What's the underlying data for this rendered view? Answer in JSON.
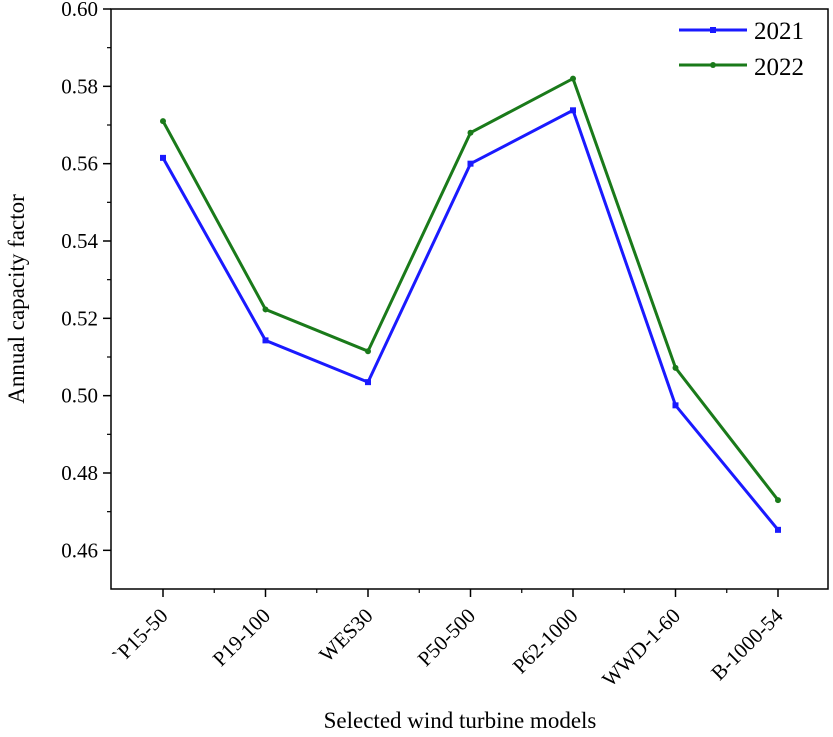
{
  "chart_data": {
    "type": "line",
    "title": "",
    "xlabel": "Selected wind turbine models",
    "ylabel": "Annual capacity factor",
    "categories": [
      "`P15-50",
      "P19-100",
      "WES30",
      "P50-500",
      "P62-1000",
      "WWD-1-60",
      "B-1000-54"
    ],
    "series": [
      {
        "name": "2021",
        "color": "#1a1aff",
        "values": [
          0.5615,
          0.5143,
          0.5035,
          0.56,
          0.5738,
          0.4975,
          0.4653
        ]
      },
      {
        "name": "2022",
        "color": "#1a7a1a",
        "values": [
          0.571,
          0.5223,
          0.5115,
          0.568,
          0.582,
          0.5072,
          0.473
        ]
      }
    ],
    "ylim": [
      0.45,
      0.6
    ],
    "yticks": [
      "0.46",
      "0.48",
      "0.50",
      "0.52",
      "0.54",
      "0.56",
      "0.58",
      "0.60"
    ],
    "grid": false,
    "legend_position": "top-right"
  }
}
